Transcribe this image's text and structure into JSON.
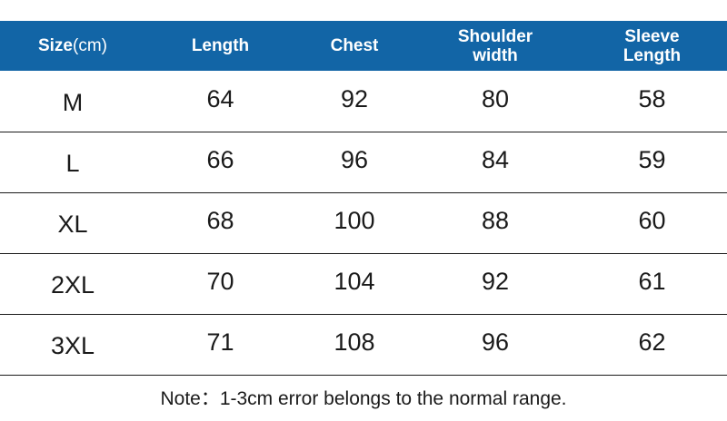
{
  "colors": {
    "header_bg": "#1265a6",
    "header_text": "#ffffff",
    "body_text": "#1a1a1a",
    "divider": "#1a1a1a"
  },
  "table": {
    "headers": [
      {
        "main": "Size",
        "unit": "(cm)"
      },
      {
        "line1": "Length"
      },
      {
        "line1": "Chest"
      },
      {
        "line1": "Shoulder",
        "line2": "width"
      },
      {
        "line1": "Sleeve",
        "line2": "Length"
      }
    ],
    "rows": [
      {
        "size": "M",
        "length": "64",
        "chest": "92",
        "shoulder": "80",
        "sleeve": "58"
      },
      {
        "size": "L",
        "length": "66",
        "chest": "96",
        "shoulder": "84",
        "sleeve": "59"
      },
      {
        "size": "XL",
        "length": "68",
        "chest": "100",
        "shoulder": "88",
        "sleeve": "60"
      },
      {
        "size": "2XL",
        "length": "70",
        "chest": "104",
        "shoulder": "92",
        "sleeve": "61"
      },
      {
        "size": "3XL",
        "length": "71",
        "chest": "108",
        "shoulder": "96",
        "sleeve": "62"
      }
    ]
  },
  "note": "Note：1-3cm error belongs to the normal range."
}
